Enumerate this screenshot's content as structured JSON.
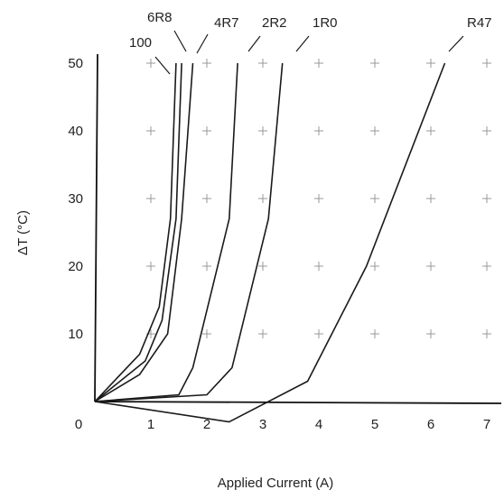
{
  "chart_data": {
    "type": "line",
    "title": "",
    "xlabel": "Applied Current (A)",
    "ylabel": "ΔT (°C)",
    "xlim": [
      0,
      7
    ],
    "ylim": [
      0,
      50
    ],
    "x_ticks": [
      "0",
      "1",
      "2",
      "3",
      "4",
      "5",
      "6",
      "7"
    ],
    "y_ticks": [
      "10",
      "20",
      "30",
      "40",
      "50"
    ],
    "grid": "plus-markers",
    "series": [
      {
        "name": "100",
        "points": [
          [
            0,
            0
          ],
          [
            0.8,
            7
          ],
          [
            1.15,
            14
          ],
          [
            1.35,
            27
          ],
          [
            1.45,
            50
          ]
        ]
      },
      {
        "name": "6R8",
        "points": [
          [
            0,
            0
          ],
          [
            0.9,
            6
          ],
          [
            1.2,
            12
          ],
          [
            1.45,
            27
          ],
          [
            1.55,
            50
          ]
        ]
      },
      {
        "name": "4R7",
        "points": [
          [
            0,
            0
          ],
          [
            0.8,
            4
          ],
          [
            1.3,
            10
          ],
          [
            1.55,
            27
          ],
          [
            1.75,
            50
          ]
        ]
      },
      {
        "name": "2R2",
        "points": [
          [
            0,
            0
          ],
          [
            1.5,
            1
          ],
          [
            1.75,
            5
          ],
          [
            2.4,
            27
          ],
          [
            2.55,
            50
          ]
        ]
      },
      {
        "name": "1R0",
        "points": [
          [
            0,
            0
          ],
          [
            2.0,
            1
          ],
          [
            2.45,
            5
          ],
          [
            3.1,
            27
          ],
          [
            3.35,
            50
          ]
        ]
      },
      {
        "name": "R47",
        "points": [
          [
            0,
            0
          ],
          [
            2.4,
            -3
          ],
          [
            3.8,
            3
          ],
          [
            4.85,
            20
          ],
          [
            6.25,
            50
          ]
        ]
      }
    ]
  }
}
